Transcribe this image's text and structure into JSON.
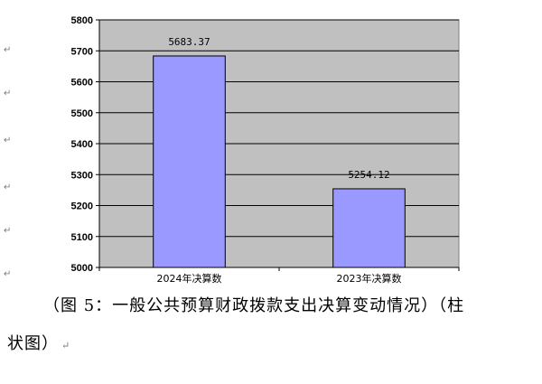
{
  "chart_data": {
    "type": "bar",
    "categories": [
      "2024年决算数",
      "2023年决算数"
    ],
    "values": [
      5683.37,
      5254.12
    ],
    "value_labels": [
      "5683.37",
      "5254.12"
    ],
    "ylim": [
      5000,
      5800
    ],
    "yticks": [
      5000,
      5100,
      5200,
      5300,
      5400,
      5500,
      5600,
      5700,
      5800
    ],
    "grid": true,
    "legend": "none",
    "bar_color": "#9999FF",
    "plot_bg": "#C0C0C0"
  },
  "caption": {
    "line1": "（图 5：一般公共预算财政拨款支出决算变动情况）（柱",
    "line2": "状图）",
    "mark": "↵"
  }
}
